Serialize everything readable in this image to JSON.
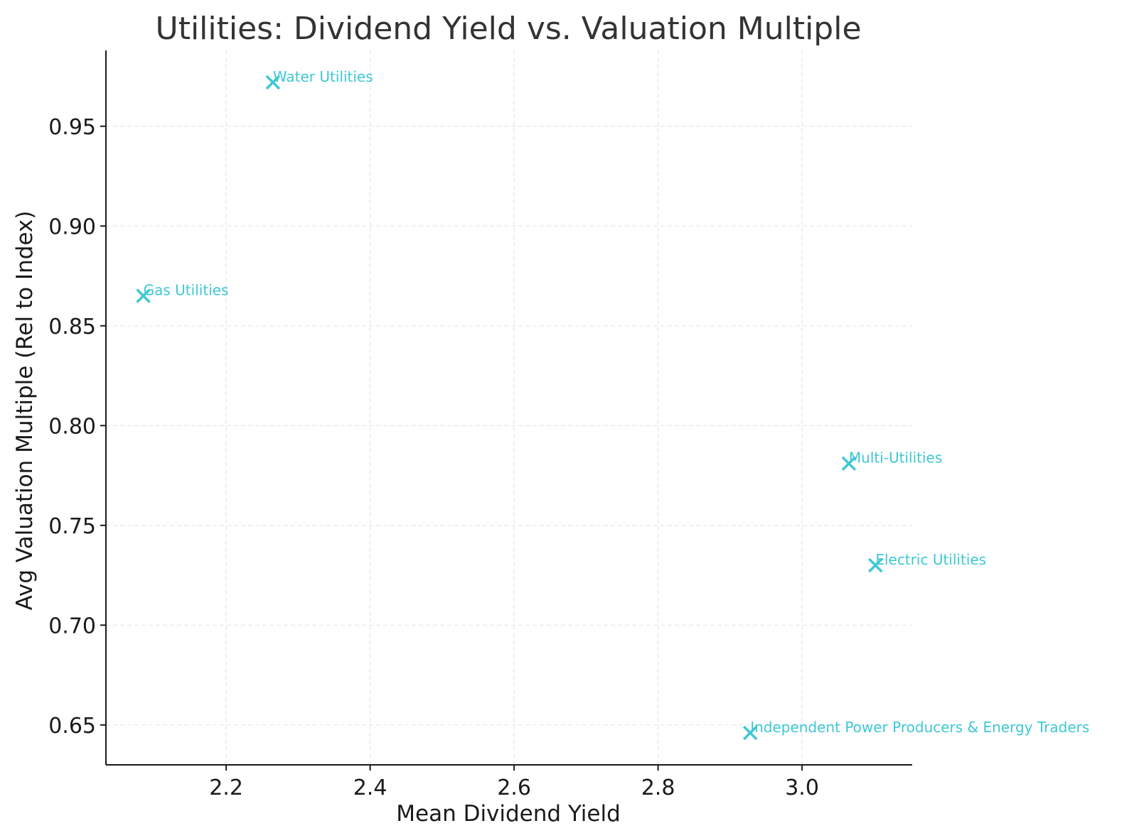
{
  "chart_data": {
    "type": "scatter",
    "title": "Utilities: Dividend Yield vs. Valuation Multiple",
    "xlabel": "Mean Dividend Yield",
    "ylabel": "Avg Valuation Multiple (Rel to Index)",
    "xlim": [
      2.033,
      3.153
    ],
    "ylim": [
      0.63,
      0.988
    ],
    "xticks": [
      2.2,
      2.4,
      2.6,
      2.8,
      3.0
    ],
    "xtick_labels": [
      "2.2",
      "2.4",
      "2.6",
      "2.8",
      "3.0"
    ],
    "yticks": [
      0.65,
      0.7,
      0.75,
      0.8,
      0.85,
      0.9,
      0.95
    ],
    "ytick_labels": [
      "0.65",
      "0.70",
      "0.75",
      "0.80",
      "0.85",
      "0.90",
      "0.95"
    ],
    "grid": true,
    "marker": "x",
    "color": "#3ec8d4",
    "points": [
      {
        "label": "Water Utilities",
        "x": 2.265,
        "y": 0.972
      },
      {
        "label": "Gas Utilities",
        "x": 2.085,
        "y": 0.865
      },
      {
        "label": "Multi-Utilities",
        "x": 3.065,
        "y": 0.781
      },
      {
        "label": "Electric Utilities",
        "x": 3.102,
        "y": 0.73
      },
      {
        "label": "Independent Power Producers & Energy Traders",
        "x": 2.928,
        "y": 0.646
      }
    ]
  }
}
